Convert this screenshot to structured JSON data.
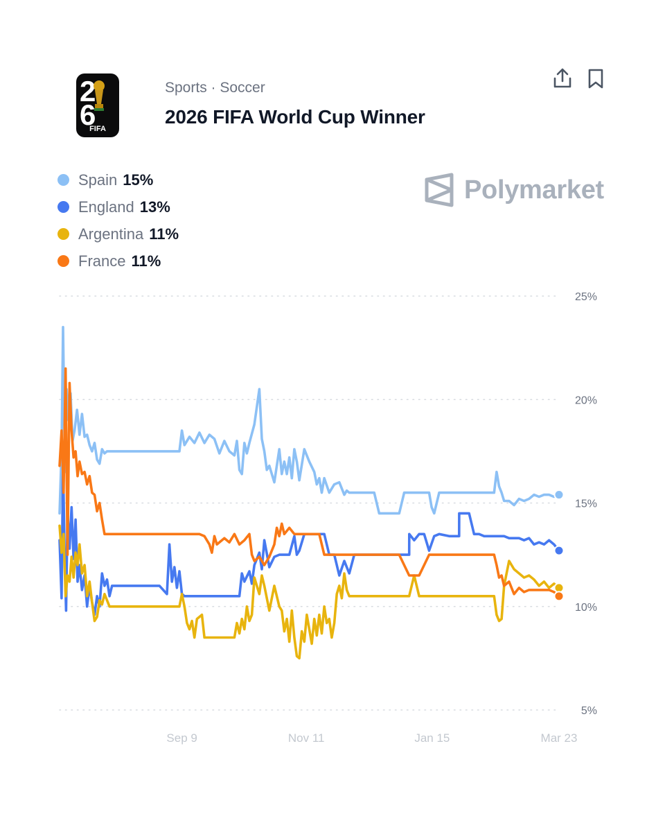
{
  "header": {
    "category": "Sports · Soccer",
    "title": "2026 FIFA World Cup Winner",
    "logo_text": "FIFA"
  },
  "actions": {
    "share_icon": "share-icon",
    "bookmark_icon": "bookmark-icon"
  },
  "watermark": {
    "text": "Polymarket"
  },
  "legend": [
    {
      "name": "Spain",
      "value": "15%",
      "color": "#8cc0f5"
    },
    {
      "name": "England",
      "value": "13%",
      "color": "#4679f0"
    },
    {
      "name": "Argentina",
      "value": "11%",
      "color": "#e8b40e"
    },
    {
      "name": "France",
      "value": "11%",
      "color": "#f97816"
    }
  ],
  "chart_data": {
    "type": "line",
    "ylim": [
      5,
      25
    ],
    "y_ticks": [
      25,
      20,
      15,
      10,
      5
    ],
    "y_tick_labels": [
      "25%",
      "20%",
      "15%",
      "10%",
      "5%"
    ],
    "x_tick_labels": [
      "Sep 9",
      "Nov 11",
      "Jan 15",
      "Mar 23"
    ],
    "x_tick_positions": [
      0.245,
      0.494,
      0.746,
      1.0
    ],
    "grid": true,
    "series": [
      {
        "name": "Spain",
        "color": "#8cc0f5",
        "x": [
          0,
          0.004,
          0.007,
          0.011,
          0.014,
          0.018,
          0.022,
          0.026,
          0.03,
          0.035,
          0.04,
          0.045,
          0.05,
          0.055,
          0.06,
          0.065,
          0.07,
          0.075,
          0.08,
          0.085,
          0.09,
          0.095,
          0.1,
          0.11,
          0.13,
          0.15,
          0.175,
          0.2,
          0.24,
          0.245,
          0.25,
          0.255,
          0.26,
          0.27,
          0.28,
          0.29,
          0.3,
          0.31,
          0.32,
          0.33,
          0.34,
          0.35,
          0.355,
          0.36,
          0.365,
          0.37,
          0.375,
          0.38,
          0.39,
          0.4,
          0.405,
          0.41,
          0.415,
          0.42,
          0.43,
          0.44,
          0.445,
          0.45,
          0.455,
          0.46,
          0.465,
          0.47,
          0.475,
          0.48,
          0.49,
          0.5,
          0.51,
          0.515,
          0.52,
          0.525,
          0.53,
          0.54,
          0.55,
          0.56,
          0.57,
          0.575,
          0.58,
          0.585,
          0.59,
          0.6,
          0.61,
          0.62,
          0.63,
          0.64,
          0.65,
          0.66,
          0.67,
          0.68,
          0.69,
          0.7,
          0.72,
          0.74,
          0.745,
          0.75,
          0.76,
          0.78,
          0.8,
          0.82,
          0.84,
          0.86,
          0.87,
          0.875,
          0.88,
          0.885,
          0.89,
          0.9,
          0.91,
          0.92,
          0.93,
          0.94,
          0.95,
          0.96,
          0.97,
          0.98,
          0.99,
          1.0
        ],
        "values": [
          14.5,
          17.5,
          23.5,
          16.5,
          20.5,
          19.0,
          20.3,
          18.0,
          18.5,
          19.5,
          18.3,
          19.3,
          18.2,
          18.3,
          17.8,
          17.5,
          17.9,
          17.1,
          16.9,
          17.6,
          17.4,
          17.5,
          17.5,
          17.5,
          17.5,
          17.5,
          17.5,
          17.5,
          17.5,
          18.5,
          17.8,
          18.0,
          18.2,
          17.9,
          18.4,
          17.9,
          18.3,
          18.1,
          17.4,
          18.0,
          17.5,
          17.3,
          18.0,
          16.6,
          16.4,
          17.9,
          17.4,
          17.9,
          18.8,
          20.5,
          18.1,
          17.5,
          16.6,
          16.8,
          16.0,
          17.6,
          16.4,
          17.0,
          16.4,
          17.2,
          16.2,
          17.6,
          17.0,
          16.1,
          17.6,
          17.0,
          16.5,
          15.9,
          16.2,
          15.5,
          16.2,
          15.5,
          15.9,
          16.0,
          15.4,
          15.6,
          15.5,
          15.5,
          15.5,
          15.5,
          15.5,
          15.5,
          15.5,
          14.5,
          14.5,
          14.5,
          14.5,
          14.5,
          15.5,
          15.5,
          15.5,
          15.5,
          14.8,
          14.5,
          15.5,
          15.5,
          15.5,
          15.5,
          15.5,
          15.5,
          15.5,
          16.5,
          15.8,
          15.5,
          15.1,
          15.1,
          14.9,
          15.2,
          15.1,
          15.2,
          15.4,
          15.3,
          15.4,
          15.4,
          15.3,
          15.4
        ]
      },
      {
        "name": "England",
        "color": "#4679f0",
        "x": [
          0,
          0.004,
          0.007,
          0.01,
          0.013,
          0.016,
          0.02,
          0.024,
          0.028,
          0.032,
          0.036,
          0.04,
          0.045,
          0.05,
          0.055,
          0.06,
          0.065,
          0.07,
          0.075,
          0.08,
          0.085,
          0.09,
          0.095,
          0.1,
          0.105,
          0.11,
          0.12,
          0.14,
          0.16,
          0.18,
          0.2,
          0.215,
          0.22,
          0.225,
          0.23,
          0.235,
          0.24,
          0.245,
          0.25,
          0.26,
          0.28,
          0.3,
          0.32,
          0.34,
          0.36,
          0.365,
          0.37,
          0.38,
          0.385,
          0.39,
          0.4,
          0.405,
          0.41,
          0.42,
          0.43,
          0.44,
          0.45,
          0.46,
          0.47,
          0.475,
          0.48,
          0.49,
          0.5,
          0.51,
          0.52,
          0.53,
          0.54,
          0.55,
          0.56,
          0.57,
          0.58,
          0.59,
          0.6,
          0.61,
          0.62,
          0.63,
          0.64,
          0.66,
          0.68,
          0.7,
          0.7001,
          0.71,
          0.72,
          0.73,
          0.74,
          0.75,
          0.76,
          0.78,
          0.8,
          0.8001,
          0.81,
          0.82,
          0.83,
          0.84,
          0.85,
          0.86,
          0.87,
          0.88,
          0.89,
          0.9,
          0.91,
          0.92,
          0.93,
          0.94,
          0.95,
          0.96,
          0.97,
          0.98,
          0.99,
          1.0
        ],
        "values": [
          13.2,
          10.4,
          17.0,
          12.6,
          9.8,
          14.6,
          12.8,
          14.8,
          12.3,
          14.2,
          11.2,
          12.0,
          10.8,
          11.5,
          10.0,
          11.0,
          10.2,
          9.6,
          10.5,
          10.0,
          11.6,
          11.0,
          11.3,
          10.5,
          11.0,
          11.0,
          11.0,
          11.0,
          11.0,
          11.0,
          11.0,
          10.6,
          13.0,
          11.2,
          11.9,
          10.9,
          11.7,
          10.6,
          10.5,
          10.5,
          10.5,
          10.5,
          10.5,
          10.5,
          10.5,
          11.6,
          11.2,
          11.7,
          11.1,
          12.0,
          12.6,
          11.8,
          13.2,
          11.9,
          12.4,
          12.5,
          12.5,
          12.5,
          13.4,
          12.5,
          12.7,
          13.5,
          13.5,
          13.5,
          13.5,
          13.5,
          12.5,
          12.5,
          11.5,
          12.2,
          11.6,
          12.5,
          12.5,
          12.5,
          12.5,
          12.5,
          12.5,
          12.5,
          12.5,
          12.5,
          13.5,
          13.2,
          13.5,
          13.5,
          12.7,
          13.4,
          13.5,
          13.4,
          13.4,
          14.5,
          14.5,
          14.5,
          13.5,
          13.5,
          13.4,
          13.4,
          13.4,
          13.4,
          13.4,
          13.3,
          13.3,
          13.3,
          13.2,
          13.3,
          13.0,
          13.1,
          13.0,
          13.2,
          13.0,
          12.7
        ]
      },
      {
        "name": "Argentina",
        "color": "#e8b40e",
        "x": [
          0,
          0.004,
          0.008,
          0.012,
          0.016,
          0.02,
          0.024,
          0.028,
          0.032,
          0.036,
          0.04,
          0.045,
          0.05,
          0.055,
          0.06,
          0.065,
          0.07,
          0.075,
          0.08,
          0.085,
          0.09,
          0.1,
          0.12,
          0.14,
          0.16,
          0.18,
          0.2,
          0.22,
          0.24,
          0.245,
          0.25,
          0.255,
          0.26,
          0.265,
          0.27,
          0.275,
          0.28,
          0.285,
          0.29,
          0.3,
          0.32,
          0.34,
          0.35,
          0.355,
          0.36,
          0.365,
          0.37,
          0.375,
          0.38,
          0.385,
          0.39,
          0.4,
          0.405,
          0.41,
          0.42,
          0.43,
          0.44,
          0.445,
          0.45,
          0.455,
          0.46,
          0.465,
          0.47,
          0.475,
          0.48,
          0.485,
          0.49,
          0.495,
          0.5,
          0.505,
          0.51,
          0.515,
          0.52,
          0.525,
          0.53,
          0.535,
          0.54,
          0.545,
          0.55,
          0.555,
          0.56,
          0.565,
          0.57,
          0.575,
          0.58,
          0.585,
          0.59,
          0.6,
          0.62,
          0.64,
          0.66,
          0.68,
          0.7,
          0.71,
          0.72,
          0.74,
          0.76,
          0.78,
          0.8,
          0.82,
          0.84,
          0.86,
          0.87,
          0.875,
          0.88,
          0.885,
          0.89,
          0.9,
          0.91,
          0.92,
          0.93,
          0.94,
          0.95,
          0.96,
          0.97,
          0.98,
          0.99,
          1.0
        ],
        "values": [
          13.9,
          12.6,
          13.5,
          10.5,
          11.5,
          11.2,
          12.4,
          11.4,
          12.6,
          12.0,
          13.0,
          11.6,
          12.0,
          10.5,
          11.2,
          10.2,
          9.3,
          9.5,
          10.3,
          10.1,
          10.6,
          10.0,
          10.0,
          10.0,
          10.0,
          10.0,
          10.0,
          10.0,
          10.0,
          10.6,
          10.0,
          9.2,
          8.9,
          9.3,
          8.5,
          9.4,
          9.5,
          9.6,
          8.5,
          8.5,
          8.5,
          8.5,
          8.5,
          9.2,
          8.7,
          9.4,
          8.9,
          10.0,
          9.3,
          9.6,
          11.4,
          10.6,
          11.5,
          11.0,
          9.8,
          11.0,
          10.0,
          9.8,
          8.8,
          9.4,
          8.3,
          9.8,
          8.5,
          7.6,
          7.5,
          8.8,
          8.3,
          9.6,
          8.9,
          8.2,
          9.4,
          8.6,
          9.6,
          8.7,
          10.0,
          9.2,
          9.4,
          8.5,
          9.2,
          10.6,
          11.0,
          10.4,
          11.6,
          10.8,
          10.5,
          10.5,
          10.5,
          10.5,
          10.5,
          10.5,
          10.5,
          10.5,
          10.5,
          11.5,
          10.5,
          10.5,
          10.5,
          10.5,
          10.5,
          10.5,
          10.5,
          10.5,
          10.5,
          9.6,
          9.3,
          9.4,
          11.0,
          12.2,
          11.8,
          11.6,
          11.4,
          11.5,
          11.3,
          11.0,
          11.2,
          10.9,
          11.1,
          10.9
        ]
      },
      {
        "name": "France",
        "color": "#f97816",
        "x": [
          0,
          0.004,
          0.008,
          0.012,
          0.016,
          0.02,
          0.024,
          0.028,
          0.032,
          0.036,
          0.04,
          0.045,
          0.05,
          0.055,
          0.06,
          0.065,
          0.07,
          0.075,
          0.08,
          0.085,
          0.09,
          0.1,
          0.14,
          0.18,
          0.22,
          0.26,
          0.28,
          0.29,
          0.3,
          0.305,
          0.31,
          0.315,
          0.32,
          0.33,
          0.34,
          0.35,
          0.36,
          0.37,
          0.38,
          0.385,
          0.39,
          0.4,
          0.41,
          0.42,
          0.43,
          0.435,
          0.44,
          0.445,
          0.45,
          0.46,
          0.47,
          0.48,
          0.49,
          0.5,
          0.51,
          0.52,
          0.53,
          0.54,
          0.55,
          0.56,
          0.57,
          0.58,
          0.6,
          0.62,
          0.64,
          0.66,
          0.68,
          0.7,
          0.72,
          0.74,
          0.76,
          0.78,
          0.8,
          0.82,
          0.84,
          0.86,
          0.87,
          0.875,
          0.88,
          0.885,
          0.89,
          0.9,
          0.91,
          0.92,
          0.93,
          0.94,
          0.95,
          0.96,
          0.97,
          0.98,
          0.99,
          1.0
        ],
        "values": [
          16.8,
          18.5,
          15.5,
          21.5,
          12.5,
          20.8,
          18.5,
          17.2,
          17.5,
          16.3,
          17.0,
          16.4,
          16.5,
          15.9,
          16.3,
          15.5,
          15.4,
          14.6,
          15.0,
          14.2,
          13.5,
          13.5,
          13.5,
          13.5,
          13.5,
          13.5,
          13.5,
          13.4,
          13.0,
          12.6,
          13.4,
          13.0,
          13.1,
          13.3,
          13.1,
          13.5,
          13.0,
          13.2,
          13.5,
          12.5,
          12.2,
          12.4,
          12.0,
          12.4,
          13.0,
          13.8,
          13.4,
          14.0,
          13.5,
          13.8,
          13.5,
          13.5,
          13.5,
          13.5,
          13.5,
          13.5,
          12.5,
          12.5,
          12.5,
          12.5,
          12.5,
          12.5,
          12.5,
          12.5,
          12.5,
          12.5,
          12.5,
          11.5,
          11.5,
          12.5,
          12.5,
          12.5,
          12.5,
          12.5,
          12.5,
          12.5,
          12.5,
          12.0,
          11.4,
          11.5,
          11.0,
          11.2,
          10.6,
          10.9,
          10.7,
          10.8,
          10.8,
          10.8,
          10.8,
          10.8,
          10.7,
          10.5
        ]
      }
    ]
  }
}
